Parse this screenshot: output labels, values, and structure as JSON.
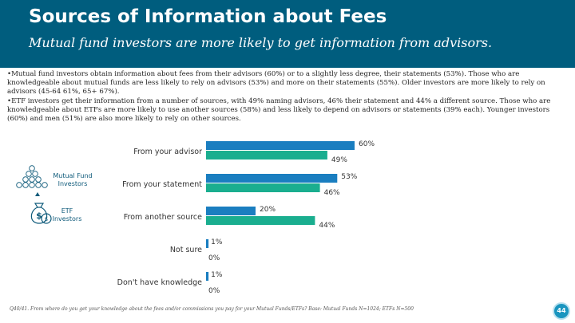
{
  "header": {
    "title": "Sources of Information about Fees",
    "subtitle": "Mutual fund investors are more likely to get information from advisors."
  },
  "body": {
    "bullet1": "•Mutual fund investors obtain information about fees from their advisors (60%) or to a slightly less degree, their statements (53%). Those who are knowledgeable about mutual funds are less likely to rely on advisors (53%) and more on their statements (55%). Older investors are more likely to rely on advisors (45-64 61%, 65+ 67%).",
    "bullet2": "•ETF investors get their information from a number of sources, with 49% naming advisors, 46% their statement and 44% a different source. Those who are knowledgeable about ETFs are more likely to use another sources (58%) and less likely to depend on advisors or statements (39% each). Younger investors (60%) and men (51%) are also more likely to rely on other sources."
  },
  "legend": {
    "mutual_label": "Mutual Fund Investors",
    "etf_label": "ETF Investors"
  },
  "colors": {
    "header_bg": "#005d7e",
    "mutual": "#1a7ec0",
    "etf": "#1aae8f",
    "accent": "#1a95bf"
  },
  "chart_data": {
    "type": "bar",
    "orientation": "horizontal",
    "categories": [
      "From your advisor",
      "From your statement",
      "From another source",
      "Not sure",
      "Don't have knowledge"
    ],
    "series": [
      {
        "name": "Mutual Fund Investors",
        "values": [
          60,
          53,
          20,
          1,
          1
        ],
        "labels": [
          "60%",
          "53%",
          "20%",
          "1%",
          "1%"
        ]
      },
      {
        "name": "ETF Investors",
        "values": [
          49,
          46,
          44,
          0,
          0
        ],
        "labels": [
          "49%",
          "46%",
          "44%",
          "0%",
          "0%"
        ]
      }
    ],
    "xlim": [
      0,
      100
    ],
    "legend_position": "left"
  },
  "footnote": "Q40/41. From where do you get your knowledge about the fees and/or commissions you pay for your Mutual Funds/ETFs? Base: Mutual Funds N=1024; ETFs N=500",
  "page_number": "44"
}
